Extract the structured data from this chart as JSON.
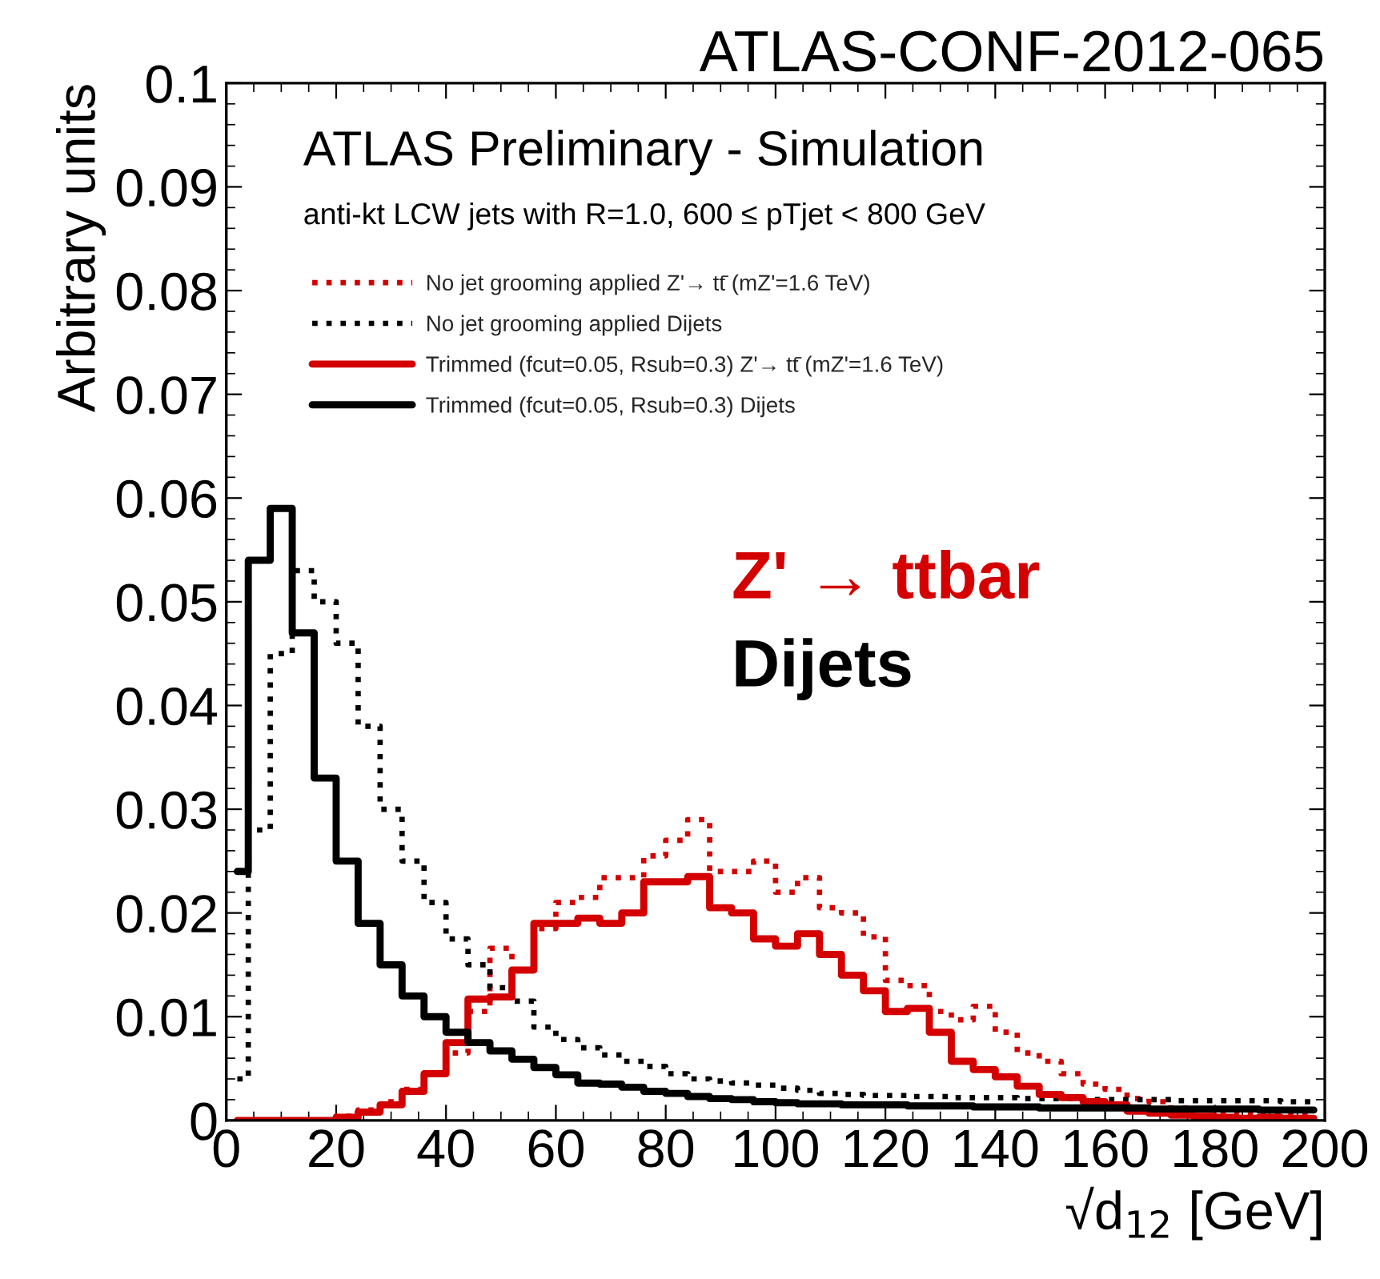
{
  "chart_data": {
    "type": "step",
    "title": "ATLAS-CONF-2012-065",
    "xlabel": "√d$_{12}$ [GeV]",
    "ylabel": "Arbitrary units",
    "x": [
      2,
      6,
      10,
      14,
      18,
      22,
      26,
      30,
      34,
      38,
      42,
      46,
      50,
      54,
      58,
      62,
      66,
      70,
      74,
      78,
      82,
      86,
      90,
      94,
      98,
      102,
      106,
      110,
      114,
      118,
      122,
      126,
      130,
      134,
      138,
      142,
      146,
      150,
      154,
      158,
      162,
      166,
      170,
      174,
      178,
      182,
      186,
      190,
      194,
      198
    ],
    "series": [
      {
        "name": "No jet grooming applied Z'→ tt̄ (mZ'=1.6 TeV)",
        "color": "#d40000",
        "line_style": "dotted",
        "values": [
          0,
          0,
          0,
          0,
          0,
          0.0004,
          0.001,
          0.0018,
          0.003,
          0.0045,
          0.0065,
          0.0105,
          0.0166,
          0.0145,
          0.0185,
          0.021,
          0.0215,
          0.0234,
          0.0234,
          0.0255,
          0.027,
          0.029,
          0.024,
          0.024,
          0.025,
          0.022,
          0.0234,
          0.0205,
          0.02,
          0.0177,
          0.0135,
          0.013,
          0.0105,
          0.0097,
          0.011,
          0.0085,
          0.0065,
          0.0057,
          0.0045,
          0.0035,
          0.003,
          0.0021,
          0.0018,
          0.0012,
          0.001,
          0.0008,
          0.0007,
          0.0006,
          0.0005,
          0.0005
        ]
      },
      {
        "name": "No jet grooming applied Dijets",
        "color": "#000000",
        "line_style": "dotted",
        "values": [
          0.004,
          0.028,
          0.045,
          0.053,
          0.05,
          0.046,
          0.038,
          0.03,
          0.025,
          0.021,
          0.0175,
          0.015,
          0.0128,
          0.0115,
          0.009,
          0.0078,
          0.007,
          0.0063,
          0.0057,
          0.0052,
          0.0045,
          0.004,
          0.0038,
          0.0036,
          0.0034,
          0.0031,
          0.0029,
          0.0026,
          0.0025,
          0.0024,
          0.0024,
          0.0023,
          0.0023,
          0.0022,
          0.0022,
          0.0022,
          0.0021,
          0.0021,
          0.0021,
          0.002,
          0.002,
          0.002,
          0.002,
          0.0019,
          0.0019,
          0.0019,
          0.0019,
          0.0019,
          0.0018,
          0.0018
        ]
      },
      {
        "name": "Trimmed (fcut=0.05, Rsub=0.3) Z'→ tt̄ (mZ'=1.6 TeV)",
        "color": "#d40000",
        "line_style": "solid",
        "values": [
          0,
          0,
          0,
          0,
          0,
          0.0003,
          0.0008,
          0.0015,
          0.0028,
          0.0045,
          0.0075,
          0.0117,
          0.0119,
          0.0145,
          0.019,
          0.019,
          0.0195,
          0.019,
          0.02,
          0.023,
          0.023,
          0.0235,
          0.0205,
          0.02,
          0.0175,
          0.0168,
          0.018,
          0.016,
          0.014,
          0.0125,
          0.0105,
          0.0108,
          0.0085,
          0.0057,
          0.0049,
          0.0042,
          0.0033,
          0.0025,
          0.0022,
          0.0018,
          0.0015,
          0.0009,
          0.0007,
          0.0005,
          0.0004,
          0.0003,
          0.0002,
          0.0003,
          0.0002,
          0.0002
        ]
      },
      {
        "name": "Trimmed (fcut=0.05, Rsub=0.3) Dijets",
        "color": "#000000",
        "line_style": "solid",
        "values": [
          0.024,
          0.054,
          0.059,
          0.047,
          0.033,
          0.025,
          0.019,
          0.015,
          0.012,
          0.01,
          0.0085,
          0.0075,
          0.0067,
          0.0059,
          0.0051,
          0.0044,
          0.0036,
          0.0035,
          0.0032,
          0.0028,
          0.0026,
          0.0023,
          0.0021,
          0.002,
          0.0018,
          0.0017,
          0.0016,
          0.0016,
          0.0015,
          0.0015,
          0.0015,
          0.0014,
          0.0014,
          0.0014,
          0.0013,
          0.0013,
          0.0013,
          0.0012,
          0.0012,
          0.0012,
          0.0012,
          0.0012,
          0.0011,
          0.0011,
          0.0011,
          0.0011,
          0.0011,
          0.001,
          0.001,
          0.001
        ]
      }
    ],
    "xlim": [
      0,
      200
    ],
    "ylim": [
      0,
      0.1
    ],
    "xticks": [
      0,
      20,
      40,
      60,
      80,
      100,
      120,
      140,
      160,
      180,
      200
    ],
    "yticks": [
      0,
      0.01,
      0.02,
      0.03,
      0.04,
      0.05,
      0.06,
      0.07,
      0.08,
      0.09,
      0.1
    ],
    "grid": false,
    "legend": "top",
    "annotations": [
      "ATLAS Preliminary - Simulation",
      "anti-kt LCW jets with R=1.0, 600 ≤ pTjet < 800 GeV",
      "Z' → ttbar",
      "Dijets"
    ]
  }
}
